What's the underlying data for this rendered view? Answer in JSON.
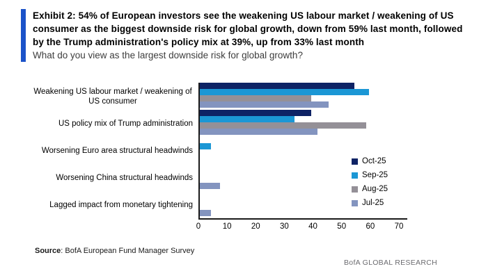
{
  "header": {
    "title": "Exhibit 2: 54% of European investors see the weakening US labour market / weakening of US consumer as the biggest downside risk for global growth, down from 59% last month, followed by the Trump administration's policy mix at 39%, up from 33% last month",
    "subtitle": "What do you view as the largest downside risk for global growth?",
    "accent_color": "#1b53c9"
  },
  "chart_data": {
    "type": "bar",
    "orientation": "horizontal",
    "title": "",
    "xlabel": "",
    "ylabel": "",
    "categories": [
      "Weakening US labour market / weakening of US consumer",
      "US policy mix of Trump administration",
      "Worsening Euro area structural headwinds",
      "Worsening China structural headwinds",
      "Lagged impact from monetary tightening"
    ],
    "series": [
      {
        "name": "Oct-25",
        "color": "#0e2365",
        "values": [
          54,
          39,
          0,
          0,
          0
        ]
      },
      {
        "name": "Sep-25",
        "color": "#1b97d5",
        "values": [
          59,
          33,
          4,
          0,
          0
        ]
      },
      {
        "name": "Aug-25",
        "color": "#949097",
        "values": [
          39,
          58,
          0,
          0,
          0
        ]
      },
      {
        "name": "Jul-25",
        "color": "#8394bf",
        "values": [
          45,
          41,
          0,
          7,
          4
        ]
      }
    ],
    "xlim": [
      0,
      70
    ],
    "x_ticks": [
      0,
      10,
      20,
      30,
      40,
      50,
      60,
      70
    ],
    "grid": false,
    "legend_position": "right-middle"
  },
  "footer": {
    "source_label": "Source",
    "source_text": ": BofA European Fund Manager Survey",
    "brand": "BofA GLOBAL RESEARCH"
  }
}
